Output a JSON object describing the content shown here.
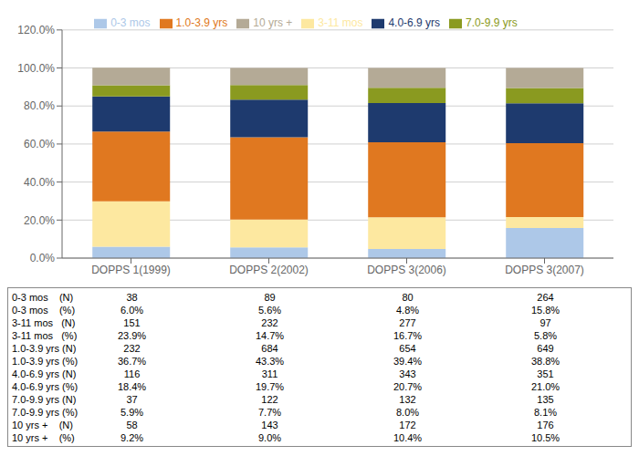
{
  "chart_data": {
    "type": "bar",
    "stacked": true,
    "grid": true,
    "legend": "top",
    "categories": [
      "DOPPS 1(1999)",
      "DOPPS 2(2002)",
      "DOPPS 3(2006)",
      "DOPPS 3(2007)"
    ],
    "series": [
      {
        "name": "0-3 mos",
        "color": "#adc8e8",
        "values": [
          6.0,
          5.6,
          4.8,
          15.8
        ]
      },
      {
        "name": "3-11 mos",
        "color": "#fde8a0",
        "values": [
          23.9,
          14.7,
          16.7,
          5.8
        ]
      },
      {
        "name": "1.0-3.9 yrs",
        "color": "#e07820",
        "values": [
          36.7,
          43.3,
          39.4,
          38.8
        ]
      },
      {
        "name": "4.0-6.9 yrs",
        "color": "#1e3a6e",
        "values": [
          18.4,
          19.7,
          20.7,
          21.0
        ]
      },
      {
        "name": "7.0-9.9 yrs",
        "color": "#8a9a20",
        "values": [
          5.9,
          7.7,
          8.0,
          8.1
        ]
      },
      {
        "name": "10 yrs +",
        "color": "#b4aa96",
        "values": [
          9.2,
          9.0,
          10.4,
          10.5
        ]
      }
    ],
    "ylim": [
      0,
      120
    ],
    "yticks": [
      {
        "value": 0,
        "label": "0.0%"
      },
      {
        "value": 20,
        "label": "20.0%"
      },
      {
        "value": 40,
        "label": "40.0%"
      },
      {
        "value": 60,
        "label": "60.0%"
      },
      {
        "value": 80,
        "label": "80.0%"
      },
      {
        "value": 100,
        "label": "100.0%"
      },
      {
        "value": 120,
        "label": "120.0%"
      }
    ],
    "table_rows": [
      {
        "label": "0-3 mos    (N)",
        "values": [
          "38",
          "89",
          "80",
          "264"
        ]
      },
      {
        "label": "0-3 mos    (%)",
        "values": [
          "6.0%",
          "5.6%",
          "4.8%",
          "15.8%"
        ]
      },
      {
        "label": "3-11 mos   (N)",
        "values": [
          "151",
          "232",
          "277",
          "97"
        ]
      },
      {
        "label": "3-11 mos   (%)",
        "values": [
          "23.9%",
          "14.7%",
          "16.7%",
          "5.8%"
        ]
      },
      {
        "label": "1.0-3.9 yrs (N)",
        "values": [
          "232",
          "684",
          "654",
          "649"
        ]
      },
      {
        "label": "1.0-3.9 yrs (%)",
        "values": [
          "36.7%",
          "43.3%",
          "39.4%",
          "38.8%"
        ]
      },
      {
        "label": "4.0-6.9 yrs (N)",
        "values": [
          "116",
          "311",
          "343",
          "351"
        ]
      },
      {
        "label": "4.0-6.9 yrs (%)",
        "values": [
          "18.4%",
          "19.7%",
          "20.7%",
          "21.0%"
        ]
      },
      {
        "label": "7.0-9.9 yrs (N)",
        "values": [
          "37",
          "122",
          "132",
          "135"
        ]
      },
      {
        "label": "7.0-9.9 yrs (%)",
        "values": [
          "5.9%",
          "7.7%",
          "8.0%",
          "8.1%"
        ]
      },
      {
        "label": "10 yrs +    (N)",
        "values": [
          "58",
          "143",
          "172",
          "176"
        ]
      },
      {
        "label": "10 yrs +    (%)",
        "values": [
          "9.2%",
          "9.0%",
          "10.4%",
          "10.5%"
        ]
      }
    ]
  }
}
